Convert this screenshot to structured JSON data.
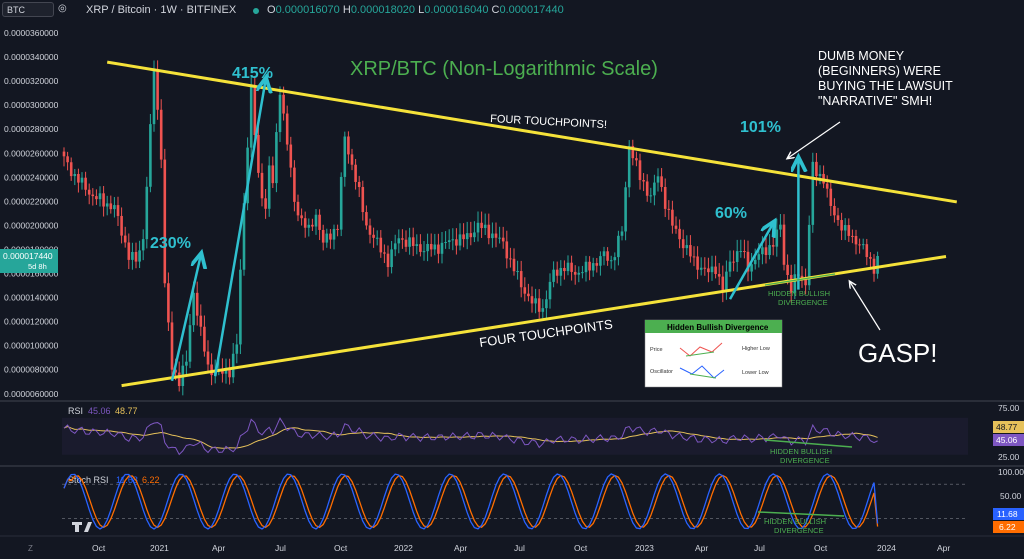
{
  "header": {
    "symbol_box": "BTC",
    "title": "XRP / Bitcoin · 1W · BITFINEX",
    "o_label": "O",
    "o_value": "0.000016070",
    "h_label": "H",
    "h_value": "0.000018020",
    "l_label": "L",
    "l_value": "0.000016040",
    "c_label": "C",
    "c_value": "0.000017440"
  },
  "colors": {
    "background": "#131722",
    "up": "#26a69a",
    "down": "#ef5350",
    "trendline": "#f5e23a",
    "annotation": "#2fc0cf",
    "rsi": "#7e57c2",
    "rsi_ma": "#e6c15a",
    "stoch_k": "#2962ff",
    "stoch_d": "#ff6d00"
  },
  "chart_data": [
    {
      "type": "candlestick",
      "title": "XRP/BTC (Non-Logarithmic Scale)",
      "ylim": [
        5.8e-06,
        3.7e-05
      ],
      "y_ticks": [
        "0.0000360000",
        "0.0000340000",
        "0.0000320000",
        "0.0000300000",
        "0.0000280000",
        "0.0000260000",
        "0.0000240000",
        "0.0000220000",
        "0.0000200000",
        "0.0000180000",
        "0.0000160000",
        "0.0000140000",
        "0.0000120000",
        "0.0000100000",
        "0.0000080000",
        "0.0000060000"
      ],
      "x_ticks": [
        "Oct",
        "2021",
        "Apr",
        "Jul",
        "Oct",
        "2022",
        "Apr",
        "Jul",
        "Oct",
        "2023",
        "Apr",
        "Jul",
        "Oct",
        "2024",
        "Apr"
      ],
      "last_price": "0.000017440",
      "countdown": "5d 8h",
      "waypoints": [
        [
          0,
          25.6
        ],
        [
          3,
          24.2
        ],
        [
          8,
          22.5
        ],
        [
          14,
          21.5
        ],
        [
          18,
          17.5
        ],
        [
          20,
          17.0
        ],
        [
          22,
          19.0
        ],
        [
          24,
          28.0
        ],
        [
          25,
          33.3
        ],
        [
          27,
          26.0
        ],
        [
          28,
          15.0
        ],
        [
          30,
          8.0
        ],
        [
          32,
          7.0
        ],
        [
          34,
          8.5
        ],
        [
          36,
          14.5
        ],
        [
          38,
          11.0
        ],
        [
          40,
          8.0
        ],
        [
          44,
          7.5
        ],
        [
          46,
          7.8
        ],
        [
          48,
          10.0
        ],
        [
          50,
          22.0
        ],
        [
          51,
          27.0
        ],
        [
          52,
          31.5
        ],
        [
          54,
          24.0
        ],
        [
          56,
          21.5
        ],
        [
          57,
          25.0
        ],
        [
          58,
          23.5
        ],
        [
          60,
          31.6
        ],
        [
          62,
          27.0
        ],
        [
          64,
          22.0
        ],
        [
          66,
          20.5
        ],
        [
          68,
          19.5
        ],
        [
          70,
          21.0
        ],
        [
          72,
          18.5
        ],
        [
          76,
          20.0
        ],
        [
          78,
          27.4
        ],
        [
          81,
          24.0
        ],
        [
          84,
          20.0
        ],
        [
          87,
          18.5
        ],
        [
          90,
          17.0
        ],
        [
          93,
          19.0
        ],
        [
          96,
          18.5
        ],
        [
          100,
          18.0
        ],
        [
          104,
          18.2
        ],
        [
          108,
          18.8
        ],
        [
          112,
          19.0
        ],
        [
          115,
          20.0
        ],
        [
          118,
          19.5
        ],
        [
          122,
          18.5
        ],
        [
          124,
          17.0
        ],
        [
          127,
          15.0
        ],
        [
          130,
          13.5
        ],
        [
          133,
          13.0
        ],
        [
          136,
          16.0
        ],
        [
          139,
          16.5
        ],
        [
          142,
          16.0
        ],
        [
          146,
          16.5
        ],
        [
          150,
          17.5
        ],
        [
          152,
          17.0
        ],
        [
          155,
          19.5
        ],
        [
          157,
          26.9
        ],
        [
          158,
          26.0
        ],
        [
          160,
          24.0
        ],
        [
          163,
          22.5
        ],
        [
          165,
          24.2
        ],
        [
          167,
          22.0
        ],
        [
          169,
          20.0
        ],
        [
          172,
          18.5
        ],
        [
          175,
          17.0
        ],
        [
          179,
          16.0
        ],
        [
          181,
          16.5
        ],
        [
          183,
          14.5
        ],
        [
          185,
          17.0
        ],
        [
          188,
          18.0
        ],
        [
          190,
          16.5
        ],
        [
          193,
          17.5
        ],
        [
          197,
          18.5
        ],
        [
          199,
          20.0
        ],
        [
          200,
          17.0
        ],
        [
          202,
          14.6
        ],
        [
          204,
          16.0
        ],
        [
          206,
          15.2
        ],
        [
          208,
          24.9
        ],
        [
          209,
          24.5
        ],
        [
          211,
          24.0
        ],
        [
          213,
          21.5
        ],
        [
          215,
          20.5
        ],
        [
          217,
          19.5
        ],
        [
          219,
          19.0
        ],
        [
          221,
          18.5
        ],
        [
          223,
          17.5
        ],
        [
          225,
          16.5
        ],
        [
          226,
          17.44
        ]
      ],
      "annotations": [
        {
          "label": "230%",
          "from": [
            30,
            6.9
          ],
          "to": [
            38,
            17.5
          ]
        },
        {
          "label": "415%",
          "from": [
            42,
            7.3
          ],
          "to": [
            56,
            32.3
          ]
        },
        {
          "label": "60%",
          "from": [
            185,
            13.8
          ],
          "to": [
            197,
            20.2
          ]
        },
        {
          "label": "101%",
          "from": [
            204,
            14.6
          ],
          "to": [
            204,
            25.6
          ]
        }
      ],
      "trendlines": [
        {
          "name": "upper",
          "from": [
            12,
            33.8
          ],
          "to": [
            248,
            22.0
          ]
        },
        {
          "name": "lower",
          "from": [
            16,
            6.5
          ],
          "to": [
            245,
            17.4
          ]
        }
      ],
      "texts": {
        "upper_touch": "FOUR TOUCHPOINTS!",
        "lower_touch": "FOUR TOUCHPOINTS",
        "dumb_money_1": "DUMB MONEY",
        "dumb_money_2": "(BEGINNERS) WERE",
        "dumb_money_3": "BUYING THE LAWSUIT",
        "dumb_money_4": "\"NARRATIVE\" SMH!",
        "gasp": "GASP!",
        "hidden_1": "HIDDEN BULLISH",
        "hidden_2": "DIVERGENCE"
      },
      "legend_box": {
        "title": "Hidden Bullish Divergence",
        "price": "Price",
        "higher_low": "Higher Low",
        "oscillator": "Oscillator",
        "lower_low": "Lower Low"
      }
    },
    {
      "type": "line",
      "title": "RSI",
      "series": [
        {
          "name": "45.06",
          "last": 45.06
        },
        {
          "name": "48.77",
          "last": 48.77
        }
      ],
      "ylim": [
        20,
        85
      ],
      "y_ticks": [
        "75.00",
        "25.00"
      ],
      "labels": {
        "hidden_1": "HIDDEN BULLISH",
        "hidden_2": "DIVERGENCE"
      }
    },
    {
      "type": "line",
      "title": "Stoch RSI",
      "series": [
        {
          "name": "11.68",
          "last": 11.68
        },
        {
          "name": "6.22",
          "last": 6.22
        }
      ],
      "ylim": [
        -5,
        110
      ],
      "y_ticks": [
        "100.00",
        "50.00"
      ],
      "labels": {
        "hidden_1": "HIDDEN BULLISH",
        "hidden_2": "DIVERGENCE"
      }
    }
  ]
}
